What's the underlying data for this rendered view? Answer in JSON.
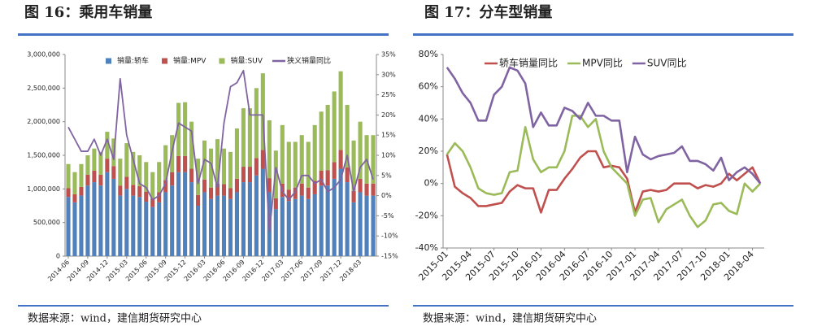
{
  "chart_data": [
    {
      "type": "bar",
      "stacked": true,
      "title": "图 16：乘用车销量",
      "source": "数据来源：wind，建信期货研究中心",
      "categories": [
        "2014-06",
        null,
        null,
        "2014-09",
        null,
        null,
        "2014-12",
        null,
        null,
        "2015-03",
        null,
        null,
        "2015-06",
        null,
        null,
        "2015-09",
        null,
        null,
        "2015-12",
        null,
        null,
        "2016-03",
        null,
        null,
        "2016-06",
        null,
        null,
        "2016-09",
        null,
        null,
        "2016-12",
        null,
        null,
        "2017-03",
        null,
        null,
        "2017-06",
        null,
        null,
        "2017-09",
        null,
        null,
        "2017-12",
        null,
        null,
        "2018-03",
        null,
        null
      ],
      "series": [
        {
          "name": "销量:轿车",
          "color": "#4f81bd",
          "values": [
            880000,
            800000,
            900000,
            1050000,
            1100000,
            1050000,
            1250000,
            1150000,
            900000,
            1000000,
            900000,
            880000,
            810000,
            730000,
            800000,
            950000,
            1050000,
            1250000,
            1250000,
            1100000,
            750000,
            950000,
            850000,
            900000,
            900000,
            850000,
            950000,
            1100000,
            1100000,
            1200000,
            1300000,
            950000,
            700000,
            880000,
            820000,
            850000,
            900000,
            850000,
            920000,
            1050000,
            1050000,
            1150000,
            1300000,
            1100000,
            800000,
            950000,
            900000,
            900000
          ]
        },
        {
          "name": "销量:MPV",
          "color": "#c0504d",
          "values": [
            130000,
            120000,
            130000,
            160000,
            170000,
            160000,
            200000,
            190000,
            150000,
            180000,
            160000,
            160000,
            150000,
            130000,
            150000,
            180000,
            200000,
            240000,
            240000,
            200000,
            160000,
            190000,
            170000,
            180000,
            170000,
            160000,
            200000,
            230000,
            230000,
            260000,
            280000,
            210000,
            160000,
            200000,
            170000,
            170000,
            180000,
            170000,
            200000,
            220000,
            230000,
            250000,
            280000,
            220000,
            170000,
            200000,
            180000,
            180000
          ]
        },
        {
          "name": "销量:SUV",
          "color": "#9bbb59",
          "values": [
            360000,
            330000,
            340000,
            290000,
            330000,
            340000,
            400000,
            410000,
            400000,
            500000,
            490000,
            460000,
            440000,
            390000,
            450000,
            520000,
            550000,
            790000,
            800000,
            700000,
            540000,
            580000,
            580000,
            660000,
            530000,
            540000,
            750000,
            870000,
            870000,
            1040000,
            1140000,
            860000,
            710000,
            870000,
            710000,
            680000,
            720000,
            680000,
            830000,
            880000,
            970000,
            1050000,
            1170000,
            930000,
            750000,
            850000,
            720000,
            720000
          ]
        },
        {
          "name": "狭义销量同比",
          "color": "#8064a2",
          "type": "line",
          "axis": "y2",
          "values": [
            17,
            14,
            11,
            11,
            14,
            10,
            14,
            9,
            29,
            15,
            9,
            3,
            2,
            -1,
            0,
            3,
            11,
            18,
            17,
            16,
            3,
            9,
            8,
            2,
            18,
            27,
            28,
            31,
            20,
            20,
            20,
            -9,
            7,
            1,
            -1,
            1,
            5,
            5,
            3,
            4,
            1,
            2,
            4,
            10,
            1,
            7,
            9,
            4
          ]
        }
      ],
      "ylim": [
        0,
        3000000
      ],
      "yticks": [
        0,
        {
          "value": 500000,
          "label": "500,000"
        },
        {
          "value": 1000000,
          "label": "1,000,000"
        },
        {
          "value": 1500000,
          "label": "1,500,000"
        },
        {
          "value": 2000000,
          "label": "2,000,000"
        },
        {
          "value": 2500000,
          "label": "2,500,000"
        },
        {
          "value": 3000000,
          "label": "3,000,000"
        }
      ],
      "y2lim": [
        -15,
        35
      ],
      "y2ticks": [
        {
          "value": -15,
          "label": "-15%"
        },
        {
          "value": -10,
          "label": "-10%"
        },
        {
          "value": -5,
          "label": "-5%"
        },
        {
          "value": 0,
          "label": "0%"
        },
        {
          "value": 5,
          "label": "5%"
        },
        {
          "value": 10,
          "label": "10%"
        },
        {
          "value": 15,
          "label": "15%"
        },
        {
          "value": 20,
          "label": "20%"
        },
        {
          "value": 25,
          "label": "25%"
        },
        {
          "value": 30,
          "label": "30%"
        },
        {
          "value": 35,
          "label": "35%"
        }
      ],
      "grid": false
    },
    {
      "type": "line",
      "title": "图 17：分车型销量",
      "source": "数据来源：wind，建信期货研究中心",
      "categories": [
        "2015-01",
        null,
        null,
        "2015-04",
        null,
        null,
        "2015-07",
        null,
        null,
        "2015-10",
        null,
        null,
        "2016-01",
        null,
        null,
        "2016-04",
        null,
        null,
        "2016-07",
        null,
        null,
        "2016-10",
        null,
        null,
        "2017-01",
        null,
        null,
        "2017-04",
        null,
        null,
        "2017-07",
        null,
        null,
        "2017-10",
        null,
        null,
        "2018-01",
        null,
        null,
        "2018-04",
        null
      ],
      "series": [
        {
          "name": "轿车销量同比",
          "color": "#c0504d",
          "values": [
            18,
            -2,
            -6,
            -9,
            -14,
            -14,
            -13,
            -12,
            -5,
            -1,
            -3,
            -3,
            -18,
            -4,
            -4,
            3,
            9,
            16,
            20,
            20,
            10,
            11,
            10,
            3,
            -18,
            -5,
            -4,
            -5,
            -4,
            0,
            0,
            0,
            -3,
            -1,
            -2,
            0,
            6,
            2,
            6,
            10,
            0
          ]
        },
        {
          "name": "MPV同比",
          "color": "#9bbb59",
          "values": [
            18,
            25,
            20,
            10,
            -3,
            -6,
            -7,
            -6,
            7,
            8,
            35,
            15,
            7,
            10,
            10,
            20,
            42,
            42,
            35,
            40,
            20,
            10,
            5,
            0,
            -20,
            -10,
            -9,
            -24,
            -16,
            -13,
            -10,
            -20,
            -27,
            -23,
            -13,
            -12,
            -17,
            -19,
            0,
            -5,
            0
          ]
        },
        {
          "name": "SUV同比",
          "color": "#8064a2",
          "values": [
            72,
            65,
            56,
            50,
            39,
            39,
            55,
            60,
            72,
            70,
            62,
            35,
            44,
            36,
            36,
            47,
            45,
            40,
            50,
            42,
            42,
            39,
            39,
            7,
            29,
            18,
            15,
            17,
            18,
            19,
            23,
            14,
            14,
            12,
            8,
            16,
            2,
            7,
            10,
            6,
            0
          ]
        }
      ],
      "ylim": [
        -40,
        80
      ],
      "yticks": [
        {
          "value": -40,
          "label": "-40%"
        },
        {
          "value": -20,
          "label": "-20%"
        },
        {
          "value": 0,
          "label": "0%"
        },
        {
          "value": 20,
          "label": "20%"
        },
        {
          "value": 40,
          "label": "40%"
        },
        {
          "value": 60,
          "label": "60%"
        },
        {
          "value": 80,
          "label": "80%"
        }
      ],
      "grid": false
    }
  ]
}
